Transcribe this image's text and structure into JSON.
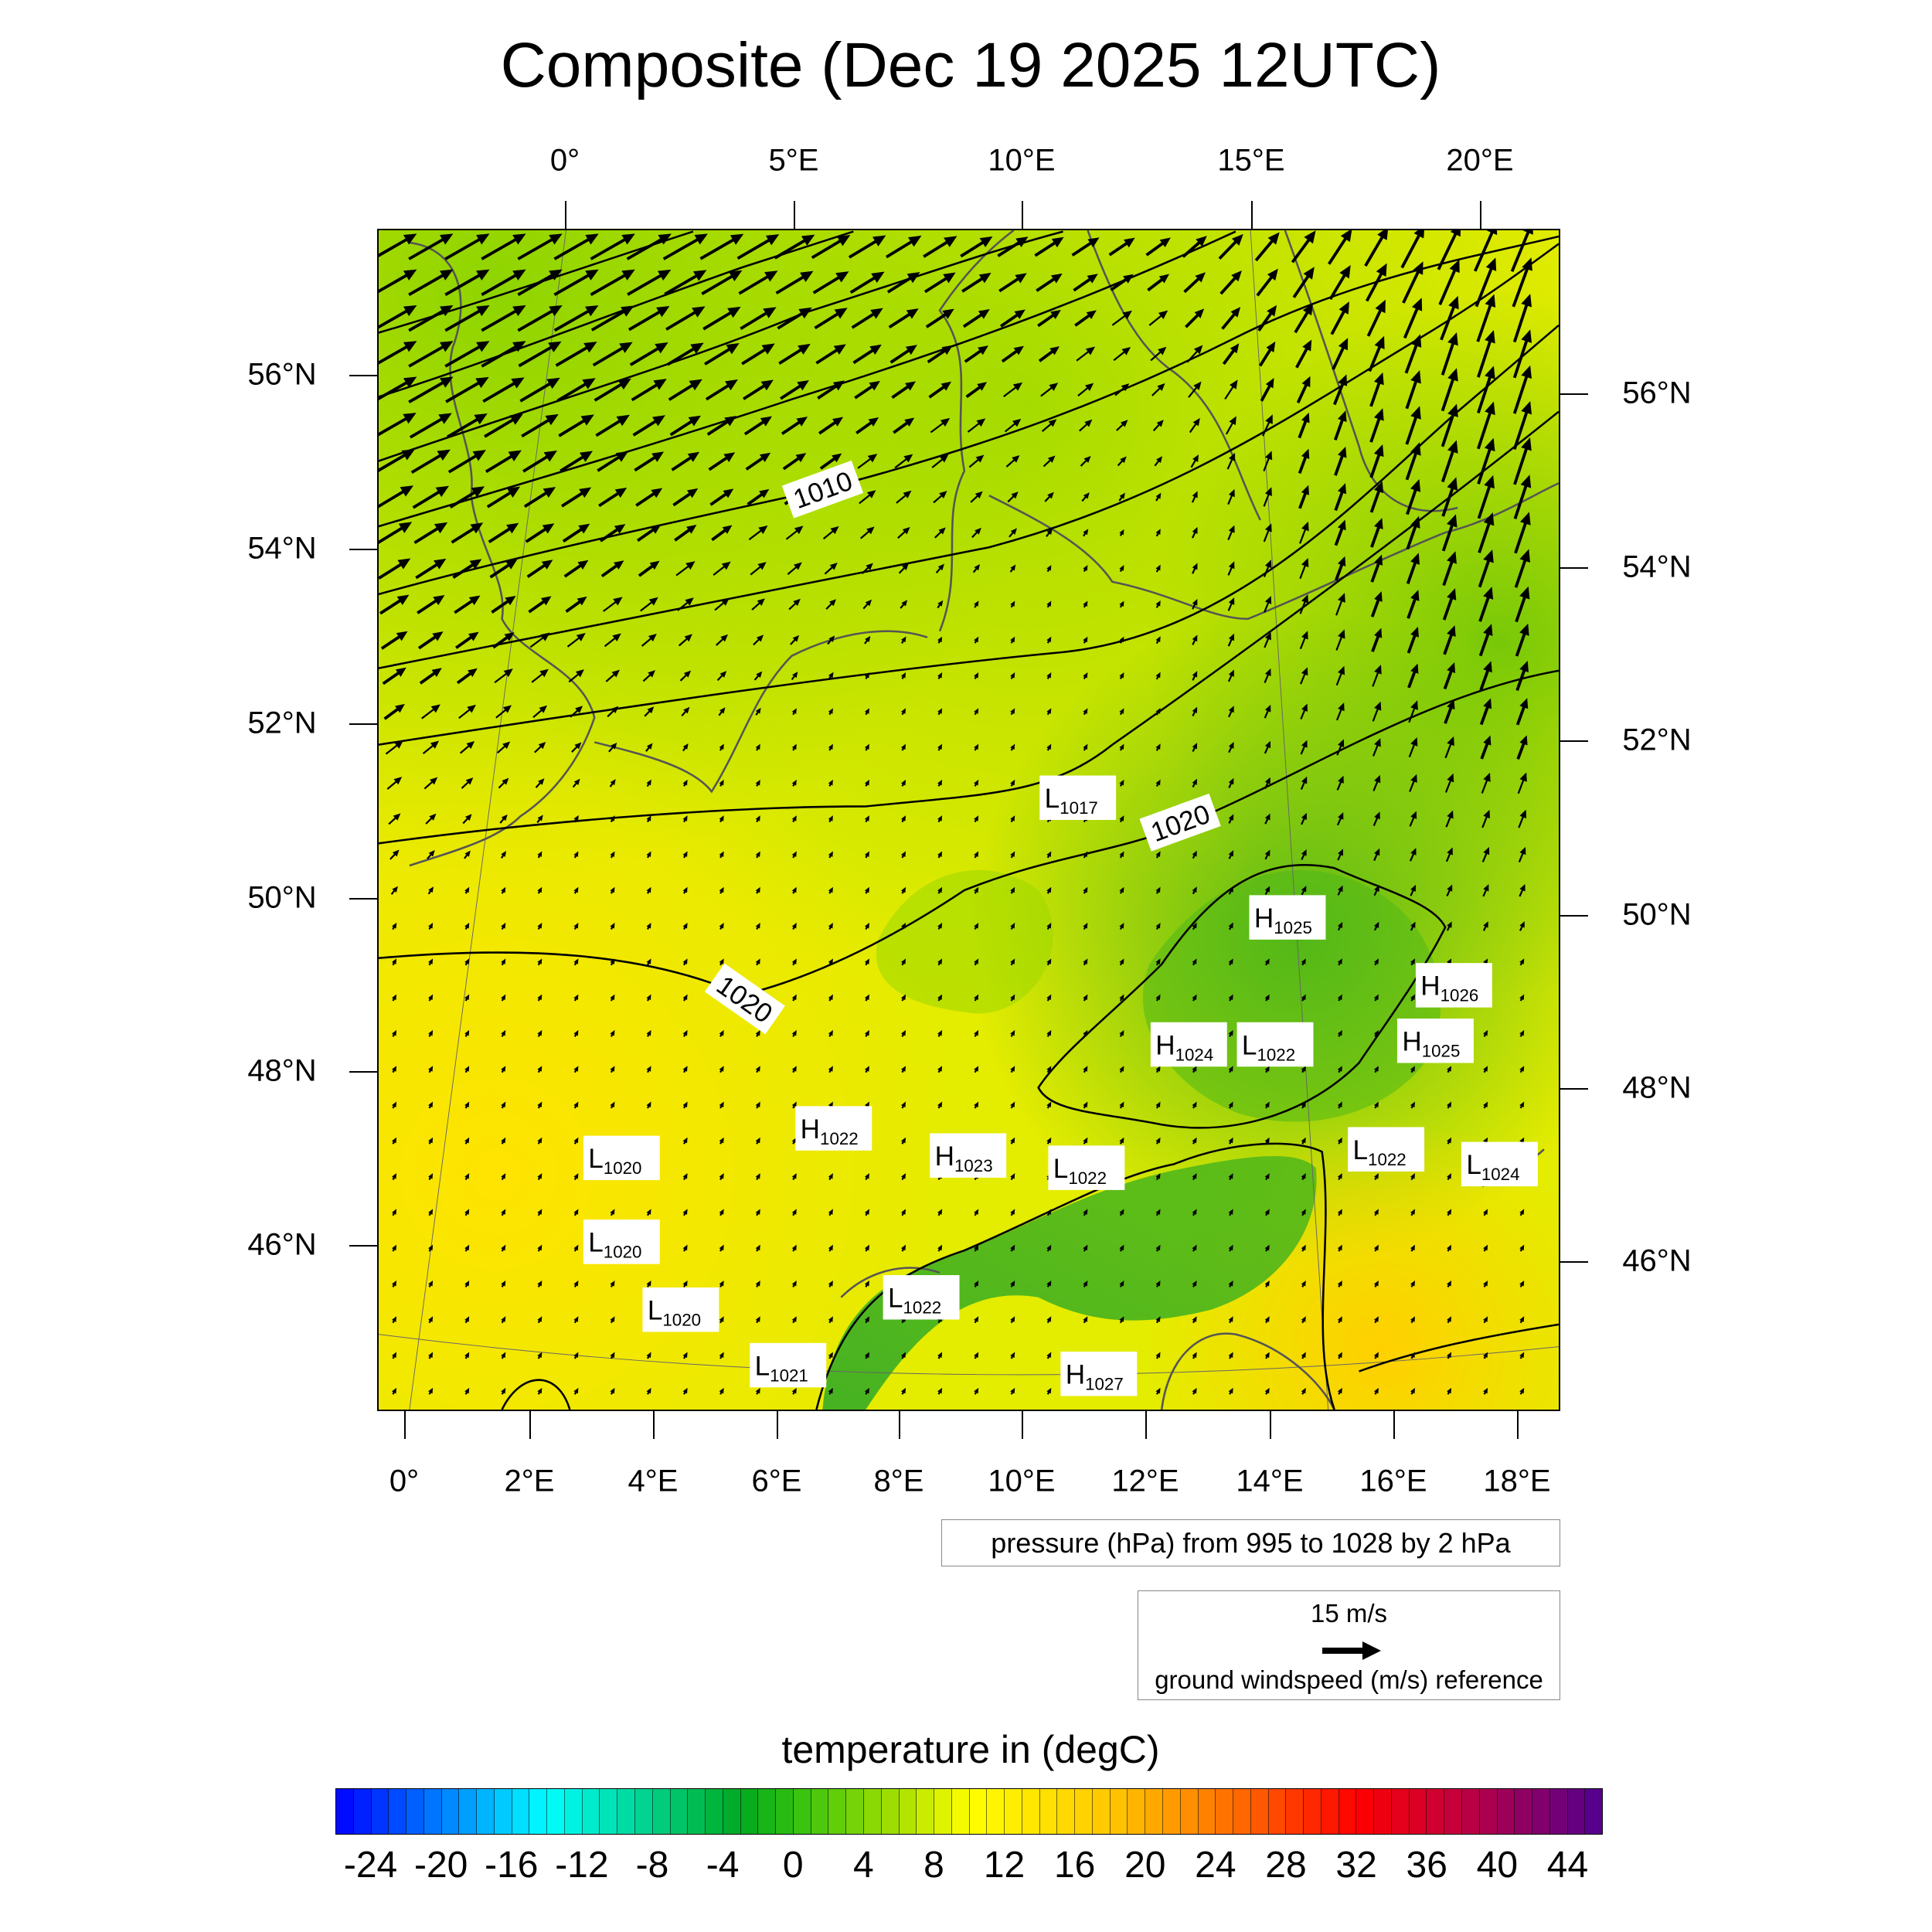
{
  "title": "Composite (Dec 19 2025 12UTC)",
  "top_lon_labels": [
    "0°",
    "5°E",
    "10°E",
    "15°E",
    "20°E"
  ],
  "bottom_lon_labels": [
    "0°",
    "2°E",
    "4°E",
    "6°E",
    "8°E",
    "10°E",
    "12°E",
    "14°E",
    "16°E",
    "18°E"
  ],
  "left_lat_labels": [
    "56°N",
    "54°N",
    "52°N",
    "50°N",
    "48°N",
    "46°N"
  ],
  "right_lat_labels": [
    "56°N",
    "54°N",
    "52°N",
    "50°N",
    "48°N",
    "46°N"
  ],
  "contour_labels": [
    "1010",
    "1020",
    "1020"
  ],
  "pressure_centers": [
    {
      "type": "L",
      "value": "1017"
    },
    {
      "type": "H",
      "value": "1025"
    },
    {
      "type": "H",
      "value": "1026"
    },
    {
      "type": "H",
      "value": "1024"
    },
    {
      "type": "L",
      "value": "1022"
    },
    {
      "type": "H",
      "value": "1025"
    },
    {
      "type": "L",
      "value": "1022"
    },
    {
      "type": "L",
      "value": "1024"
    },
    {
      "type": "H",
      "value": "1022"
    },
    {
      "type": "L",
      "value": "1020"
    },
    {
      "type": "H",
      "value": "1023"
    },
    {
      "type": "L",
      "value": "1022"
    },
    {
      "type": "L",
      "value": "1020"
    },
    {
      "type": "L",
      "value": "1020"
    },
    {
      "type": "L",
      "value": "1022"
    },
    {
      "type": "L",
      "value": "1021"
    },
    {
      "type": "H",
      "value": "1027"
    }
  ],
  "pressure_legend": "pressure (hPa) from 995 to 1028 by 2 hPa",
  "wind_legend": {
    "value": "15 m/s",
    "description": "ground windspeed (m/s) reference"
  },
  "colorbar": {
    "title": "temperature in (degC)",
    "min": -26,
    "max": 46,
    "step": 1,
    "labels": [
      "-24",
      "-20",
      "-16",
      "-12",
      "-8",
      "-4",
      "0",
      "4",
      "8",
      "12",
      "16",
      "20",
      "24",
      "28",
      "32",
      "36",
      "40",
      "44"
    ],
    "color_stops": [
      {
        "t": -26,
        "c": "#0000ff"
      },
      {
        "t": -14,
        "c": "#00ffff"
      },
      {
        "t": -3,
        "c": "#00a820"
      },
      {
        "t": 0,
        "c": "#30c010"
      },
      {
        "t": 6,
        "c": "#a8e000"
      },
      {
        "t": 10,
        "c": "#ffff00"
      },
      {
        "t": 18,
        "c": "#ffc800"
      },
      {
        "t": 26,
        "c": "#ff6000"
      },
      {
        "t": 32,
        "c": "#ff0000"
      },
      {
        "t": 38,
        "c": "#c00040"
      },
      {
        "t": 46,
        "c": "#500090"
      }
    ]
  },
  "colors": {
    "contour": "#000000",
    "coastline": "#555555",
    "label_bg": "#ffffff"
  }
}
